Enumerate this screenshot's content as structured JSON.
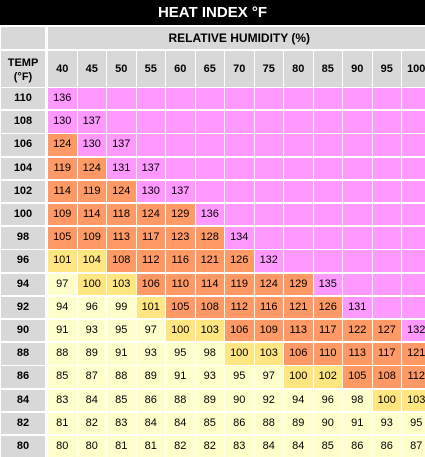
{
  "title": "HEAT INDEX °F",
  "chart_data": {
    "type": "table",
    "title": "HEAT INDEX °F",
    "xlabel": "RELATIVE HUMIDITY (%)",
    "ylabel": "TEMP (°F)",
    "ylabel_lines": [
      "TEMP",
      "(°F)"
    ],
    "humidity": [
      "40",
      "45",
      "50",
      "55",
      "60",
      "65",
      "70",
      "75",
      "80",
      "85",
      "90",
      "95",
      "100"
    ],
    "temps": [
      "110",
      "108",
      "106",
      "104",
      "102",
      "100",
      "98",
      "96",
      "94",
      "92",
      "90",
      "88",
      "86",
      "84",
      "82",
      "80"
    ],
    "values": [
      [
        "136",
        "",
        "",
        "",
        "",
        "",
        "",
        "",
        "",
        "",
        "",
        "",
        ""
      ],
      [
        "130",
        "137",
        "",
        "",
        "",
        "",
        "",
        "",
        "",
        "",
        "",
        "",
        ""
      ],
      [
        "124",
        "130",
        "137",
        "",
        "",
        "",
        "",
        "",
        "",
        "",
        "",
        "",
        ""
      ],
      [
        "119",
        "124",
        "131",
        "137",
        "",
        "",
        "",
        "",
        "",
        "",
        "",
        "",
        ""
      ],
      [
        "114",
        "119",
        "124",
        "130",
        "137",
        "",
        "",
        "",
        "",
        "",
        "",
        "",
        ""
      ],
      [
        "109",
        "114",
        "118",
        "124",
        "129",
        "136",
        "",
        "",
        "",
        "",
        "",
        "",
        ""
      ],
      [
        "105",
        "109",
        "113",
        "117",
        "123",
        "128",
        "134",
        "",
        "",
        "",
        "",
        "",
        ""
      ],
      [
        "101",
        "104",
        "108",
        "112",
        "116",
        "121",
        "126",
        "132",
        "",
        "",
        "",
        "",
        ""
      ],
      [
        "97",
        "100",
        "103",
        "106",
        "110",
        "114",
        "119",
        "124",
        "129",
        "135",
        "",
        "",
        ""
      ],
      [
        "94",
        "96",
        "99",
        "101",
        "105",
        "108",
        "112",
        "116",
        "121",
        "126",
        "131",
        "",
        ""
      ],
      [
        "91",
        "93",
        "95",
        "97",
        "100",
        "103",
        "106",
        "109",
        "113",
        "117",
        "122",
        "127",
        "132"
      ],
      [
        "88",
        "89",
        "91",
        "93",
        "95",
        "98",
        "100",
        "103",
        "106",
        "110",
        "113",
        "117",
        "121"
      ],
      [
        "85",
        "87",
        "88",
        "89",
        "91",
        "93",
        "95",
        "97",
        "100",
        "102",
        "105",
        "108",
        "112"
      ],
      [
        "83",
        "84",
        "85",
        "86",
        "88",
        "89",
        "90",
        "92",
        "94",
        "96",
        "98",
        "100",
        "103"
      ],
      [
        "81",
        "82",
        "83",
        "84",
        "84",
        "85",
        "86",
        "88",
        "89",
        "90",
        "91",
        "93",
        "95"
      ],
      [
        "80",
        "80",
        "81",
        "81",
        "82",
        "82",
        "83",
        "84",
        "84",
        "85",
        "86",
        "86",
        "87"
      ]
    ],
    "category_colors": {
      "caution": "#ffffcc",
      "extreme_caution": "#ffe680",
      "danger": "#ff9966",
      "extreme_danger": "#ff99ff"
    },
    "header_color": "#d8d8d8"
  }
}
